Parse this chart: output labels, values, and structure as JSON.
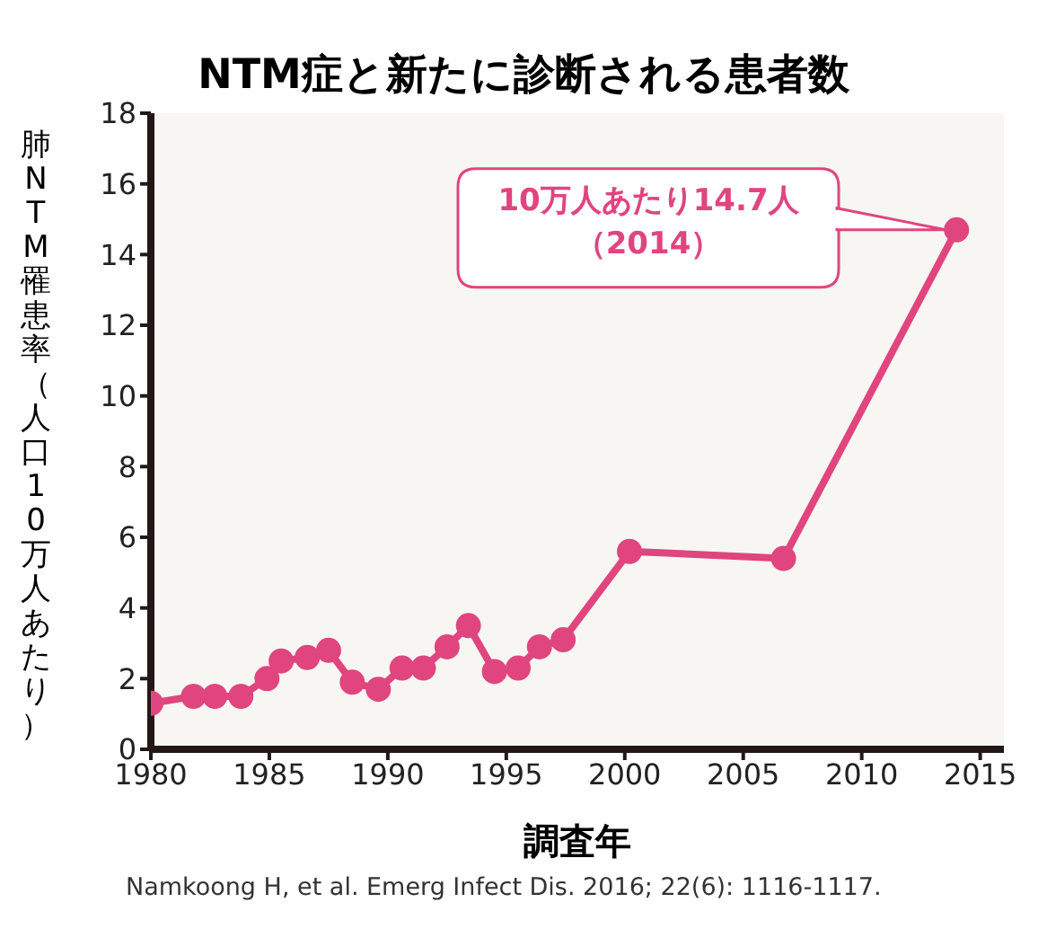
{
  "chart_data": {
    "type": "line",
    "title": "NTM症と新たに診断される患者数",
    "xlabel": "調査年",
    "ylabel": "肺NTM罹患率（人口10万人あたり）",
    "x": [
      1980,
      1981.8,
      1982.7,
      1983.8,
      1984.9,
      1985.5,
      1986.6,
      1987.5,
      1988.5,
      1989.6,
      1990.6,
      1991.5,
      1992.5,
      1993.4,
      1994.5,
      1995.5,
      1996.4,
      1997.4,
      2000.2,
      2006.7,
      2014
    ],
    "series": [
      {
        "color": "#e0457f",
        "values": [
          1.3,
          1.5,
          1.5,
          1.5,
          2.0,
          2.5,
          2.6,
          2.8,
          1.9,
          1.7,
          2.3,
          2.3,
          2.9,
          3.5,
          2.2,
          2.3,
          2.9,
          3.1,
          5.6,
          5.4,
          14.7
        ]
      }
    ],
    "xlim": [
      1980,
      2016
    ],
    "xticks": [
      1980,
      1985,
      1990,
      1995,
      2000,
      2005,
      2010,
      2015
    ],
    "ylim": [
      0,
      18
    ],
    "yticks": [
      0,
      2,
      4,
      6,
      8,
      10,
      12,
      14,
      16,
      18
    ],
    "grid": false,
    "marker": "circle",
    "line_style": "solid",
    "annotations": [
      {
        "text": "10万人あたり14.7人（2014）",
        "x": 2014,
        "y": 14.7
      },
      "Namkoong H, et al. Emerg Infect Dis. 2016; 22(6): 1116-1117."
    ]
  }
}
